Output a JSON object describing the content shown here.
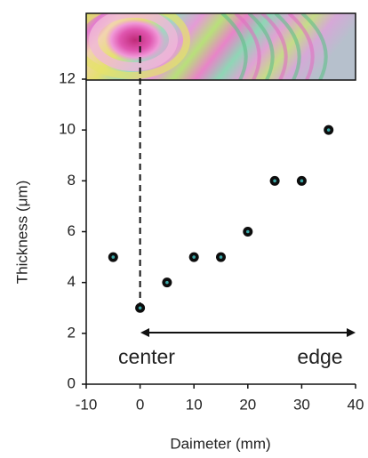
{
  "chart_data": {
    "type": "scatter",
    "x": [
      -5,
      0,
      5,
      10,
      15,
      20,
      25,
      30,
      35
    ],
    "values": [
      5,
      3,
      4,
      5,
      5,
      6,
      8,
      8,
      10
    ],
    "color": "#0d0d0d",
    "xlim": [
      -10,
      40
    ],
    "xticks": [
      -10,
      0,
      10,
      20,
      30,
      40
    ],
    "ylim": [
      0,
      12
    ],
    "yticks": [
      0,
      2,
      4,
      6,
      8,
      10,
      12
    ],
    "xlabel": "Daimeter (mm)",
    "ylabel": "Thickness (μm)",
    "annotations": [
      "center",
      "edge"
    ]
  }
}
